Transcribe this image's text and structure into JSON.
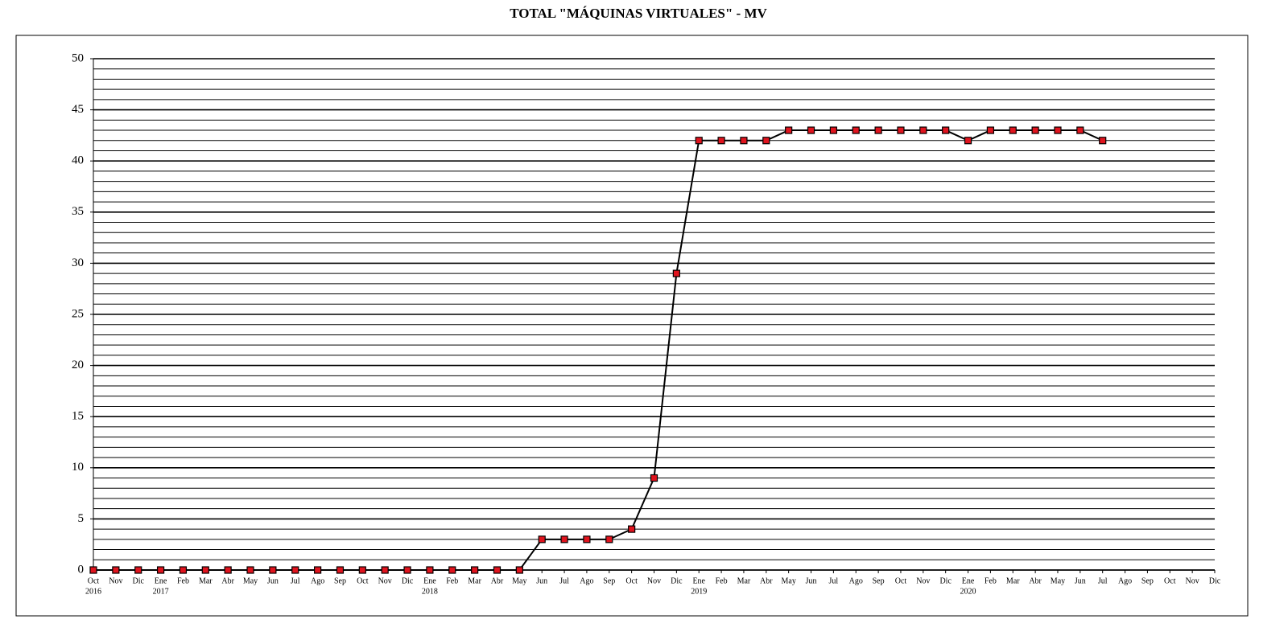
{
  "chart_data": {
    "type": "line",
    "title": "TOTAL \"MÁQUINAS VIRTUALES\" - MV",
    "categories": [
      "Oct",
      "Nov",
      "Dic",
      "Ene",
      "Feb",
      "Mar",
      "Abr",
      "May",
      "Jun",
      "Jul",
      "Ago",
      "Sep",
      "Oct",
      "Nov",
      "Dic",
      "Ene",
      "Feb",
      "Mar",
      "Abr",
      "May",
      "Jun",
      "Jul",
      "Ago",
      "Sep",
      "Oct",
      "Nov",
      "Dic",
      "Ene",
      "Feb",
      "Mar",
      "Abr",
      "May",
      "Jun",
      "Jul",
      "Ago",
      "Sep",
      "Oct",
      "Nov",
      "Dic",
      "Ene",
      "Feb",
      "Mar",
      "Abr",
      "May",
      "Jun",
      "Jul",
      "Ago",
      "Sep",
      "Oct",
      "Nov",
      "Dic"
    ],
    "category_years": [
      "2016",
      null,
      null,
      "2017",
      null,
      null,
      null,
      null,
      null,
      null,
      null,
      null,
      null,
      null,
      null,
      "2018",
      null,
      null,
      null,
      null,
      null,
      null,
      null,
      null,
      null,
      null,
      null,
      "2019",
      null,
      null,
      null,
      null,
      null,
      null,
      null,
      null,
      null,
      null,
      null,
      "2020",
      null,
      null,
      null,
      null,
      null,
      null,
      null,
      null,
      null,
      null,
      null
    ],
    "series": [
      {
        "name": "MV",
        "color": "#000000",
        "marker_color": "#e0141e",
        "values": [
          0,
          0,
          0,
          0,
          0,
          0,
          0,
          0,
          0,
          0,
          0,
          0,
          0,
          0,
          0,
          0,
          0,
          0,
          0,
          0,
          3,
          3,
          3,
          3,
          4,
          9,
          29,
          42,
          42,
          42,
          42,
          43,
          43,
          43,
          43,
          43,
          43,
          43,
          43,
          42,
          43,
          43,
          43,
          43,
          43,
          42,
          null,
          null,
          null,
          null,
          null
        ]
      }
    ],
    "ylim": [
      0,
      50
    ],
    "yticks": [
      0,
      5,
      10,
      15,
      20,
      25,
      30,
      35,
      40,
      45,
      50
    ],
    "minor_yticks": [
      1,
      2,
      3,
      4,
      6,
      7,
      8,
      9,
      11,
      12,
      13,
      14,
      16,
      17,
      18,
      19,
      21,
      22,
      23,
      24,
      26,
      27,
      28,
      29,
      31,
      32,
      33,
      34,
      36,
      37,
      38,
      39,
      41,
      42,
      43,
      44,
      46,
      47,
      48,
      49
    ],
    "grid": true
  }
}
